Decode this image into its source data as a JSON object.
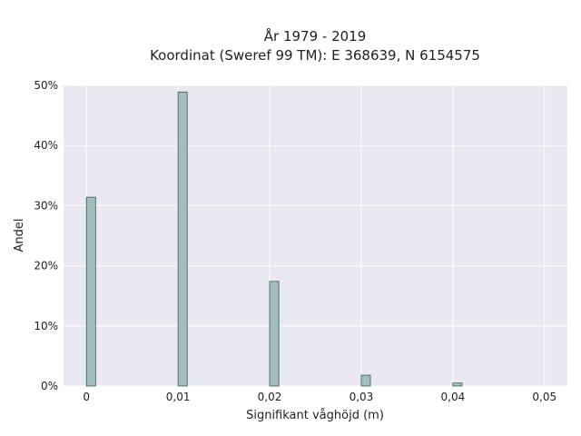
{
  "chart_data": {
    "type": "bar",
    "title_lines": [
      "År 1979 - 2019",
      "Koordinat (Sweref 99 TM): E 368639, N 6154575"
    ],
    "xlabel": "Signifikant våghöjd (m)",
    "ylabel": "Andel",
    "xlim": [
      -0.0025,
      0.0525
    ],
    "ylim": [
      0,
      0.5
    ],
    "xticks": [
      {
        "value": 0,
        "label": "0"
      },
      {
        "value": 0.01,
        "label": "0,01"
      },
      {
        "value": 0.02,
        "label": "0,02"
      },
      {
        "value": 0.03,
        "label": "0,03"
      },
      {
        "value": 0.04,
        "label": "0,04"
      },
      {
        "value": 0.05,
        "label": "0,05"
      }
    ],
    "yticks": [
      {
        "value": 0,
        "label": "0%"
      },
      {
        "value": 0.1,
        "label": "10%"
      },
      {
        "value": 0.2,
        "label": "20%"
      },
      {
        "value": 0.3,
        "label": "30%"
      },
      {
        "value": 0.4,
        "label": "40%"
      },
      {
        "value": 0.5,
        "label": "50%"
      }
    ],
    "bar_width": 0.001,
    "bars": [
      {
        "x": 0.0005,
        "y": 0.314
      },
      {
        "x": 0.0105,
        "y": 0.489
      },
      {
        "x": 0.0205,
        "y": 0.174
      },
      {
        "x": 0.0305,
        "y": 0.018
      },
      {
        "x": 0.0405,
        "y": 0.005
      }
    ],
    "colors": {
      "plot_bg": "#e9e9f1",
      "bar_fill": "#a3bcbd",
      "bar_stroke": "#3d5a5a"
    },
    "grid": true
  }
}
